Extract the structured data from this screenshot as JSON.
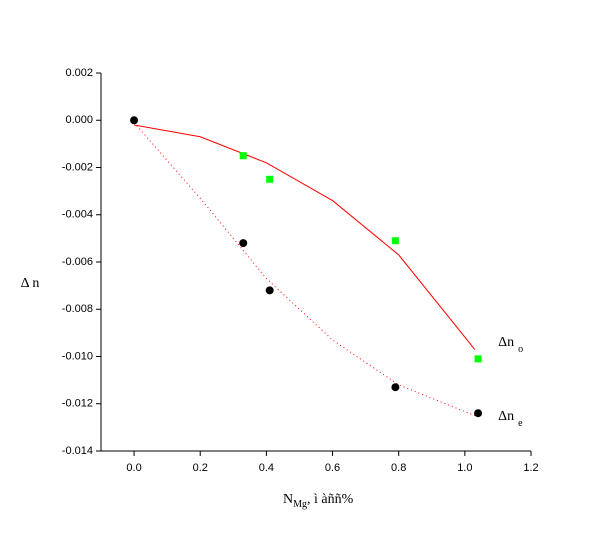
{
  "chart_data": {
    "type": "scatter",
    "ylabel": "Δ n",
    "xlabel": "N",
    "xlabel_sub": "Mg",
    "xlabel_rest": ", ì àññ%",
    "xlim": [
      -0.1,
      1.2
    ],
    "xticks": [
      {
        "value": 0,
        "label": "0.0"
      },
      0.2,
      0.4,
      0.6,
      0.8,
      {
        "value": 1,
        "label": "1.0"
      },
      1.2
    ],
    "ylim": [
      -0.014,
      0.002
    ],
    "yticks": [
      0.002,
      {
        "value": 0,
        "label": "0.000"
      },
      -0.002,
      -0.004,
      -0.006,
      -0.008,
      {
        "value": -0.01,
        "label": "-0.010"
      },
      -0.012,
      -0.014
    ],
    "series": [
      {
        "name": "Δn",
        "subscript": "o",
        "color": "#00ff00",
        "marker": "square",
        "x": [
          0.33,
          0.41,
          0.79,
          1.04
        ],
        "values": [
          -0.0015,
          -0.0025,
          -0.0051,
          -0.0101
        ]
      },
      {
        "name": "Δn",
        "subscript": "e",
        "color": "#000000",
        "marker": "circle",
        "x": [
          0,
          0.33,
          0.41,
          0.79,
          1.04
        ],
        "values": [
          0,
          -0.0052,
          -0.0072,
          -0.0113,
          -0.0124
        ]
      }
    ],
    "fits": [
      {
        "color": "#ff0000",
        "dash": "solid",
        "x": [
          0,
          0.2,
          0.4,
          0.6,
          0.8,
          1.03
        ],
        "values": [
          -0.0002,
          -0.0007,
          -0.0018,
          -0.0034,
          -0.0057,
          -0.0097
        ]
      },
      {
        "color": "#ff0000",
        "dash": "dotted",
        "x": [
          0,
          0.2,
          0.4,
          0.6,
          0.8,
          1.03
        ],
        "values": [
          -0.0001,
          -0.0033,
          -0.0067,
          -0.0093,
          -0.0112,
          -0.0125
        ]
      }
    ]
  }
}
